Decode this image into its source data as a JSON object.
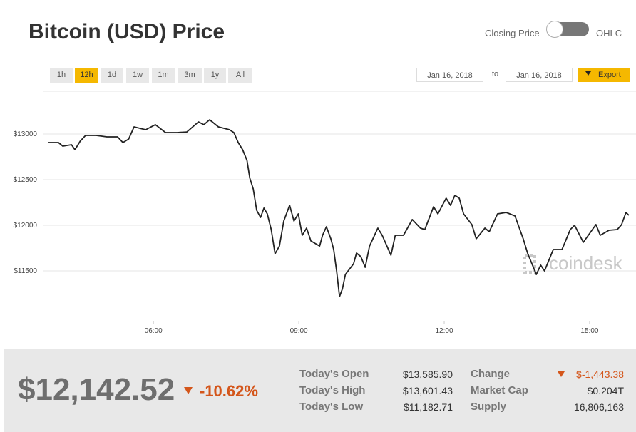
{
  "header": {
    "title": "Bitcoin (USD) Price",
    "toggle_left": "Closing Price",
    "toggle_right": "OHLC"
  },
  "ranges": [
    "1h",
    "12h",
    "1d",
    "1w",
    "1m",
    "3m",
    "1y",
    "All"
  ],
  "selected_range": "12h",
  "date_from": "Jan 16, 2018",
  "date_sep": "to",
  "date_to": "Jan 16, 2018",
  "export": "Export",
  "chart_data": {
    "type": "line",
    "color": "#222222",
    "watermark": "coindesk",
    "x": [
      3.82,
      4.04,
      4.13,
      4.31,
      4.38,
      4.49,
      4.6,
      4.82,
      5.04,
      5.26,
      5.37,
      5.49,
      5.6,
      5.84,
      6.04,
      6.25,
      6.49,
      6.69,
      6.93,
      7.04,
      7.16,
      7.34,
      7.57,
      7.66,
      7.75,
      7.84,
      7.93,
      7.99,
      8.06,
      8.13,
      8.21,
      8.28,
      8.35,
      8.43,
      8.51,
      8.6,
      8.69,
      8.81,
      8.9,
      8.99,
      9.07,
      9.16,
      9.25,
      9.43,
      9.49,
      9.57,
      9.66,
      9.72,
      9.78,
      9.84,
      9.9,
      9.96,
      10.13,
      10.19,
      10.28,
      10.37,
      10.46,
      10.63,
      10.72,
      10.9,
      10.99,
      11.16,
      11.34,
      11.51,
      11.6,
      11.78,
      11.87,
      12.04,
      12.13,
      12.22,
      12.31,
      12.4,
      12.57,
      12.66,
      12.84,
      12.93,
      13.1,
      13.28,
      13.46,
      13.54,
      13.63,
      13.72,
      13.9,
      13.99,
      14.07,
      14.25,
      14.43,
      14.6,
      14.69,
      14.87,
      15.13,
      15.22,
      15.4,
      15.57,
      15.66,
      15.75,
      15.81
    ],
    "values": [
      12906,
      12906,
      12867,
      12883,
      12828,
      12922,
      12984,
      12984,
      12969,
      12969,
      12906,
      12945,
      13078,
      13047,
      13102,
      13016,
      13016,
      13023,
      13133,
      13102,
      13156,
      13078,
      13047,
      13016,
      12906,
      12828,
      12711,
      12516,
      12398,
      12164,
      12086,
      12188,
      12125,
      11953,
      11688,
      11773,
      12047,
      12219,
      12047,
      12125,
      11891,
      11969,
      11828,
      11773,
      11891,
      11984,
      11852,
      11734,
      11500,
      11219,
      11305,
      11461,
      11578,
      11695,
      11656,
      11539,
      11773,
      11969,
      11891,
      11672,
      11891,
      11891,
      12063,
      11969,
      11953,
      12203,
      12125,
      12297,
      12219,
      12328,
      12297,
      12125,
      12008,
      11852,
      11969,
      11930,
      12125,
      12141,
      12102,
      11984,
      11852,
      11695,
      11461,
      11563,
      11500,
      11734,
      11734,
      11953,
      12000,
      11813,
      12008,
      11891,
      11945,
      11953,
      12008,
      12141,
      12109
    ],
    "xlim": [
      3.82,
      15.81
    ],
    "xticks": [
      {
        "value": 6,
        "label": "06:00"
      },
      {
        "value": 9,
        "label": "09:00"
      },
      {
        "value": 12,
        "label": "12:00"
      },
      {
        "value": 15,
        "label": "15:00"
      }
    ],
    "ylim": [
      11000,
      13500
    ],
    "yticks": [
      {
        "value": 11500,
        "label": "$11500"
      },
      {
        "value": 12000,
        "label": "$12000"
      },
      {
        "value": 12500,
        "label": "$12500"
      },
      {
        "value": 13000,
        "label": "$13000"
      }
    ],
    "grid": true
  },
  "stats": {
    "price": "$12,142.52",
    "change_pct": "-10.62%",
    "left": [
      [
        "Today's Open",
        "$13,585.90"
      ],
      [
        "Today's High",
        "$13,601.43"
      ],
      [
        "Today's Low",
        "$11,182.71"
      ]
    ],
    "right": [
      [
        "Change",
        "$-1,443.38"
      ],
      [
        "Market Cap",
        "$0.204T"
      ],
      [
        "Supply",
        "16,806,163"
      ]
    ]
  }
}
